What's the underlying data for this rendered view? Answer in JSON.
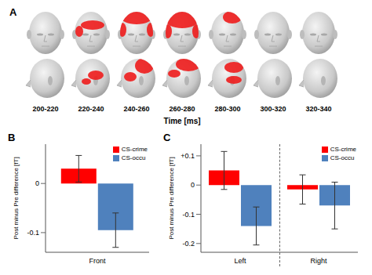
{
  "panel_a": {
    "title": "A",
    "type": "image",
    "xlabel": "Time [ms]",
    "time_windows": [
      "200-220",
      "220-240",
      "240-260",
      "260-280",
      "280-300",
      "300-320",
      "320-340"
    ]
  },
  "chart_data": [
    {
      "type": "bar",
      "title": "B",
      "ylabel": "Post minus Pre difference [fT]",
      "categories": [
        "Front"
      ],
      "series": [
        {
          "name": "CS-crime",
          "color": "#ff0000",
          "values": [
            0.03
          ],
          "errors": [
            0.027
          ]
        },
        {
          "name": "CS-occu",
          "color": "#4f81bd",
          "values": [
            -0.095
          ],
          "errors": [
            0.035
          ]
        }
      ],
      "ylim": [
        -0.14,
        0.08
      ],
      "yticks": [
        -0.1,
        0
      ],
      "legend": "upper right"
    },
    {
      "type": "bar",
      "title": "C",
      "ylabel": "Post minus Pre difference [fT]",
      "categories": [
        "Left",
        "Right"
      ],
      "series": [
        {
          "name": "CS-crime",
          "color": "#ff0000",
          "values": [
            0.05,
            -0.015
          ],
          "errors": [
            0.065,
            0.05
          ]
        },
        {
          "name": "CS-occu",
          "color": "#4f81bd",
          "values": [
            -0.14,
            -0.07
          ],
          "errors": [
            0.065,
            0.08
          ]
        }
      ],
      "ylim": [
        -0.23,
        0.14
      ],
      "yticks": [
        -0.2,
        -0.1,
        0,
        {
          "value": 0.1,
          "label": "+0.1"
        }
      ],
      "legend": "upper right"
    }
  ]
}
